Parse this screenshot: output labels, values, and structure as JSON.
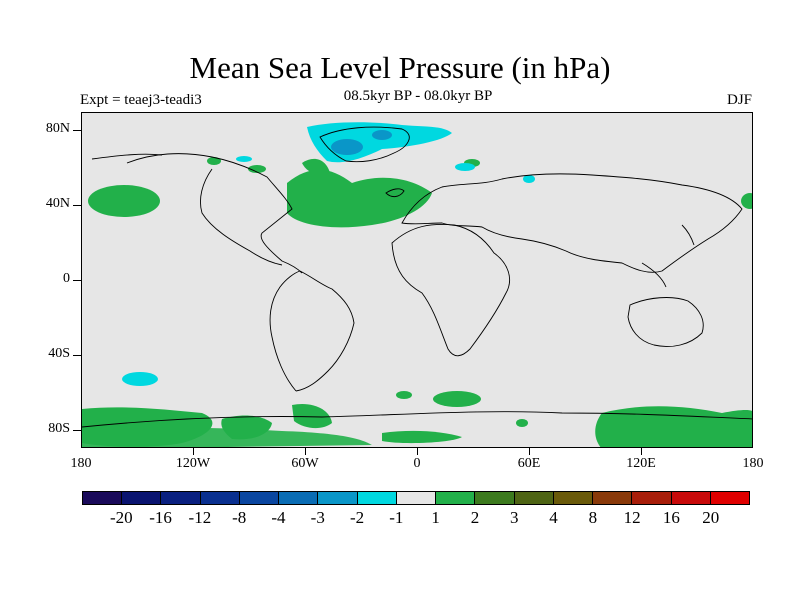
{
  "title": "Mean Sea Level Pressure (in hPa)",
  "left_label": "Expt = teaej3-teadi3",
  "center_label": "08.5kyr BP - 08.0kyr BP",
  "right_label": "DJF",
  "chart_data": {
    "type": "heatmap",
    "projection": "cylindrical-equidistant",
    "lon_range": [
      -180,
      180
    ],
    "lat_range": [
      -90,
      90
    ],
    "y_ticks": [
      "80N",
      "40N",
      "0",
      "40S",
      "80S"
    ],
    "y_tick_values": [
      80,
      40,
      0,
      -40,
      -80
    ],
    "x_ticks": [
      "180",
      "120W",
      "60W",
      "0",
      "60E",
      "120E",
      "180"
    ],
    "x_tick_values": [
      -180,
      -120,
      -60,
      0,
      60,
      120,
      180
    ],
    "colorbar": {
      "labels": [
        "-20",
        "-16",
        "-12",
        "-8",
        "-4",
        "-3",
        "-2",
        "-1",
        "1",
        "2",
        "3",
        "4",
        "8",
        "12",
        "16",
        "20"
      ],
      "colors": [
        "#1a0a5a",
        "#0a1470",
        "#0a2080",
        "#0a3090",
        "#0a46a0",
        "#0a6cb4",
        "#0a96c8",
        "#00d8e0",
        "#e6e6e6",
        "#22b04a",
        "#3c7a1e",
        "#4e6414",
        "#6a5a0a",
        "#8a3a0a",
        "#a81e0a",
        "#c80a0a",
        "#e00000"
      ]
    },
    "background_value_color": "#e6e6e6",
    "positive_regions_color": "#22b04a",
    "negative_regions_color": "#00d8e0",
    "strong_negative_color": "#0a96c8"
  }
}
